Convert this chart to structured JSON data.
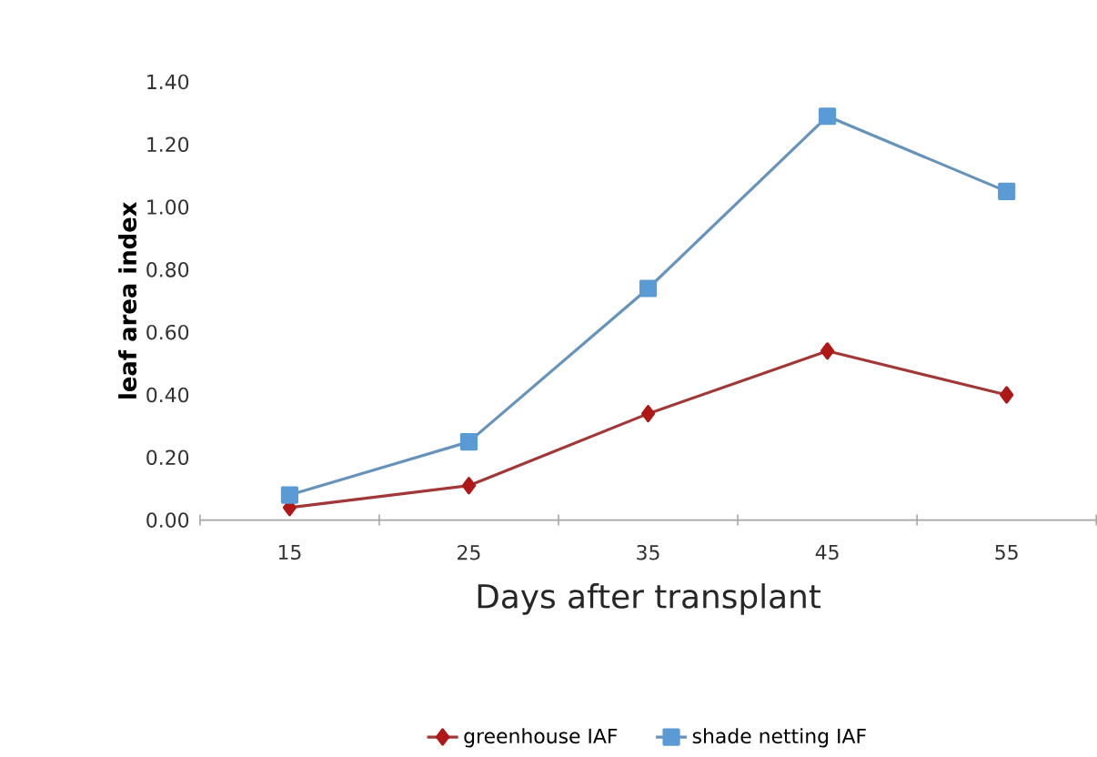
{
  "chart_data": {
    "type": "line",
    "xlabel": "Days after transplant",
    "ylabel": "leaf area index",
    "categories": [
      "15",
      "25",
      "35",
      "45",
      "55"
    ],
    "series": [
      {
        "name": "greenhouse  IAF",
        "color": "#b01818",
        "marker": "diamond",
        "values": [
          0.04,
          0.11,
          0.34,
          0.54,
          0.4
        ]
      },
      {
        "name": "shade netting IAF",
        "color": "#5b9bd5",
        "marker": "square",
        "values": [
          0.08,
          0.25,
          0.74,
          1.29,
          1.05
        ]
      }
    ],
    "ylim": [
      0,
      1.4
    ],
    "yticks": [
      {
        "value": 0,
        "label": "0.00"
      },
      {
        "value": 0.2,
        "label": "0.20"
      },
      {
        "value": 0.4,
        "label": "0.40"
      },
      {
        "value": 0.6,
        "label": "0.60"
      },
      {
        "value": 0.8,
        "label": "0.80"
      },
      {
        "value": 1.0,
        "label": "1.00"
      },
      {
        "value": 1.2,
        "label": "1.20"
      },
      {
        "value": 1.4,
        "label": "1.40"
      }
    ],
    "grid": false,
    "legend": "bottom"
  }
}
